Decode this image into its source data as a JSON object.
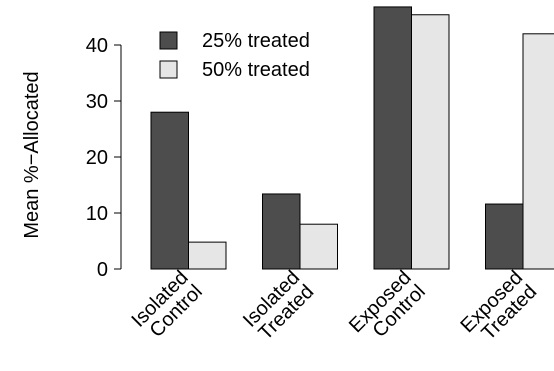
{
  "chart_data": {
    "type": "bar",
    "categories": [
      [
        "Isolated",
        "Control"
      ],
      [
        "Isolated",
        "Treated"
      ],
      [
        "Exposed",
        "Control"
      ],
      [
        "Exposed",
        "Treated"
      ]
    ],
    "series": [
      {
        "name": "25% treated",
        "color": "#4d4d4d",
        "values": [
          28.0,
          13.4,
          46.8,
          11.6
        ]
      },
      {
        "name": "50% treated",
        "color": "#e6e6e6",
        "values": [
          4.8,
          8.0,
          45.4,
          42.0
        ]
      }
    ],
    "ylabel": "Mean %−Allocated",
    "ylim": [
      0,
      48
    ],
    "yticks": [
      0,
      10,
      20,
      30,
      40
    ],
    "legend": "top-left"
  }
}
